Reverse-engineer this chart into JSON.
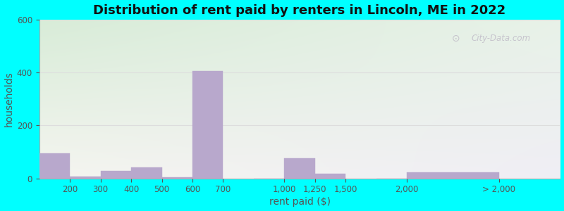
{
  "title": "Distribution of rent paid by renters in Lincoln, ME in 2022",
  "xlabel": "rent paid ($)",
  "ylabel": "households",
  "bar_color": "#b8a8cc",
  "background_outer": "#00ffff",
  "ylim": [
    0,
    600
  ],
  "yticks": [
    0,
    200,
    400,
    600
  ],
  "tick_labels": [
    "200",
    "300",
    "400",
    "500",
    "600",
    "700",
    "1,000",
    "1,250",
    "1,500",
    "2,000",
    "> 2,000"
  ],
  "tick_positions": [
    1,
    2,
    3,
    4,
    5,
    6,
    8,
    9,
    10,
    12,
    15
  ],
  "values": [
    95,
    8,
    28,
    42,
    5,
    405,
    0,
    75,
    18,
    0,
    22
  ],
  "bar_widths": [
    1,
    1,
    1,
    1,
    1,
    1,
    1,
    1,
    1,
    1,
    3
  ],
  "watermark": "City-Data.com",
  "title_fontsize": 13,
  "label_fontsize": 10,
  "grid_color": "#dddddd",
  "spine_color": "#aaaaaa",
  "text_color": "#555555"
}
